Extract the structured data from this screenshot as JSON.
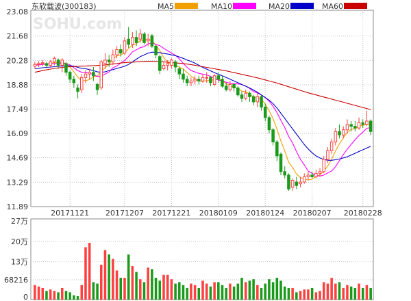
{
  "header": {
    "title": "东软载波(300183)",
    "watermark": "SOHU.com",
    "legend": [
      {
        "label": "MA5",
        "color": "#f0a000"
      },
      {
        "label": "MA10",
        "color": "#ff00ff"
      },
      {
        "label": "MA20",
        "color": "#0000c8"
      },
      {
        "label": "MA60",
        "color": "#c80000"
      }
    ]
  },
  "price_axis": {
    "ticks": [
      "23.08",
      "21.68",
      "20.28",
      "18.88",
      "17.49",
      "16.09",
      "14.69",
      "13.29",
      "11.89"
    ]
  },
  "date_axis": {
    "labels": [
      "20171121",
      "20171207",
      "20171221",
      "20180109",
      "20180124",
      "20180207",
      "20180228"
    ]
  },
  "volume_axis": {
    "ticks": [
      "27万",
      "20万",
      "13万",
      "68216",
      "0"
    ]
  },
  "colors": {
    "up": "#ff4040",
    "down": "#1a9a1a",
    "grid": "#c0c0c0",
    "border": "#888888",
    "wick": "#000000"
  },
  "chart_data": {
    "type": "candlestick",
    "title": "东软载波(300183)",
    "ylim": [
      11.89,
      23.08
    ],
    "volume_ylim": [
      0,
      270000
    ],
    "date_labels": [
      "20171121",
      "20171207",
      "20171221",
      "20180109",
      "20180124",
      "20180207",
      "20180228"
    ],
    "candles": [
      [
        19.95,
        20.05,
        20.2,
        19.8
      ],
      [
        20.05,
        20.1,
        20.25,
        19.9
      ],
      [
        20.1,
        20.15,
        20.3,
        19.95
      ],
      [
        20.1,
        20.0,
        20.2,
        19.85
      ],
      [
        20.0,
        20.2,
        20.3,
        19.9
      ],
      [
        20.2,
        20.4,
        20.5,
        20.0
      ],
      [
        20.3,
        20.0,
        20.4,
        19.8
      ],
      [
        20.0,
        20.3,
        20.4,
        19.6
      ],
      [
        20.1,
        19.6,
        20.2,
        19.4
      ],
      [
        19.6,
        19.2,
        19.7,
        19.0
      ],
      [
        19.2,
        19.0,
        19.4,
        18.7
      ],
      [
        18.7,
        18.5,
        18.9,
        18.1
      ],
      [
        18.6,
        19.3,
        19.5,
        18.4
      ],
      [
        19.3,
        19.5,
        19.7,
        19.0
      ],
      [
        19.5,
        19.6,
        19.8,
        19.2
      ],
      [
        19.6,
        19.4,
        19.9,
        19.1
      ],
      [
        18.9,
        18.6,
        19.0,
        18.3
      ],
      [
        18.7,
        20.2,
        20.3,
        18.6
      ],
      [
        20.1,
        20.3,
        20.7,
        19.8
      ],
      [
        20.3,
        20.2,
        20.6,
        19.9
      ],
      [
        20.2,
        20.6,
        20.9,
        20.0
      ],
      [
        20.6,
        20.9,
        21.1,
        20.4
      ],
      [
        20.9,
        20.7,
        21.2,
        20.5
      ],
      [
        20.7,
        21.4,
        21.6,
        20.6
      ],
      [
        21.5,
        21.2,
        22.2,
        21.0
      ],
      [
        21.2,
        21.6,
        21.9,
        21.0
      ],
      [
        21.6,
        21.3,
        22.0,
        21.1
      ],
      [
        21.5,
        21.8,
        22.1,
        21.3
      ],
      [
        21.8,
        21.3,
        21.9,
        21.2
      ],
      [
        21.4,
        21.5,
        21.8,
        21.1
      ],
      [
        21.7,
        21.1,
        21.8,
        21.0
      ],
      [
        21.1,
        20.6,
        21.2,
        20.4
      ],
      [
        20.5,
        19.7,
        20.6,
        19.5
      ],
      [
        19.8,
        20.0,
        20.2,
        19.7
      ],
      [
        20.0,
        20.1,
        20.3,
        19.7
      ],
      [
        20.0,
        20.3,
        20.4,
        19.8
      ],
      [
        20.2,
        19.9,
        20.3,
        19.6
      ],
      [
        19.8,
        19.5,
        19.9,
        19.2
      ],
      [
        19.5,
        19.2,
        19.8,
        19.0
      ],
      [
        19.2,
        19.0,
        19.4,
        18.8
      ],
      [
        19.0,
        19.1,
        19.3,
        18.8
      ],
      [
        19.1,
        19.2,
        19.4,
        18.9
      ],
      [
        19.2,
        19.1,
        19.4,
        18.9
      ],
      [
        19.1,
        19.3,
        19.5,
        19.0
      ],
      [
        19.3,
        19.3,
        19.6,
        19.0
      ],
      [
        19.3,
        19.0,
        19.4,
        18.8
      ],
      [
        18.9,
        19.4,
        19.5,
        18.8
      ],
      [
        19.4,
        19.2,
        19.6,
        19.0
      ],
      [
        19.2,
        18.8,
        19.4,
        18.7
      ],
      [
        18.8,
        18.6,
        19.0,
        18.5
      ],
      [
        18.6,
        18.9,
        19.1,
        18.5
      ],
      [
        18.9,
        18.7,
        19.0,
        18.5
      ],
      [
        18.7,
        18.3,
        18.8,
        18.2
      ],
      [
        18.3,
        18.1,
        18.5,
        17.9
      ],
      [
        18.1,
        18.4,
        18.6,
        18.0
      ],
      [
        18.4,
        18.2,
        18.5,
        17.9
      ],
      [
        18.2,
        17.9,
        18.3,
        17.7
      ],
      [
        17.9,
        18.2,
        18.4,
        17.6
      ],
      [
        18.2,
        17.6,
        18.3,
        17.4
      ],
      [
        17.6,
        17.0,
        17.8,
        16.8
      ],
      [
        17.0,
        16.3,
        17.1,
        16.1
      ],
      [
        16.3,
        15.6,
        16.4,
        15.4
      ],
      [
        15.6,
        14.8,
        15.7,
        14.5
      ],
      [
        14.9,
        13.9,
        15.0,
        13.7
      ],
      [
        13.9,
        13.7,
        14.2,
        13.5
      ],
      [
        13.7,
        12.9,
        13.8,
        12.8
      ],
      [
        13.0,
        13.4,
        13.5,
        12.8
      ],
      [
        13.3,
        13.1,
        13.6,
        12.9
      ],
      [
        13.2,
        13.3,
        13.6,
        13.0
      ],
      [
        13.3,
        13.6,
        13.8,
        13.2
      ],
      [
        13.6,
        13.7,
        13.9,
        13.4
      ],
      [
        13.7,
        13.6,
        13.9,
        13.5
      ],
      [
        13.6,
        13.8,
        14.0,
        13.5
      ],
      [
        13.8,
        13.9,
        14.1,
        13.6
      ],
      [
        13.9,
        14.6,
        14.8,
        13.8
      ],
      [
        14.6,
        15.1,
        15.3,
        14.4
      ],
      [
        15.1,
        15.6,
        15.8,
        14.9
      ],
      [
        15.6,
        16.2,
        16.4,
        15.4
      ],
      [
        16.2,
        16.0,
        16.6,
        15.8
      ],
      [
        16.0,
        16.3,
        16.5,
        15.8
      ],
      [
        16.3,
        16.6,
        16.9,
        16.1
      ],
      [
        16.6,
        16.5,
        16.8,
        16.2
      ],
      [
        16.5,
        16.4,
        16.8,
        16.2
      ],
      [
        16.4,
        16.7,
        17.0,
        16.3
      ],
      [
        16.7,
        16.6,
        16.9,
        16.4
      ],
      [
        16.6,
        16.8,
        17.4,
        16.5
      ],
      [
        16.8,
        16.2,
        16.9,
        16.0
      ]
    ],
    "volume": [
      50000,
      45000,
      40000,
      30000,
      35000,
      30000,
      25000,
      40000,
      30000,
      25000,
      15000,
      12000,
      50000,
      180000,
      195000,
      60000,
      55000,
      120000,
      170000,
      155000,
      140000,
      100000,
      75000,
      75000,
      155000,
      115000,
      95000,
      70000,
      60000,
      110000,
      105000,
      75000,
      65000,
      85000,
      85000,
      70000,
      55000,
      60000,
      50000,
      40000,
      55000,
      50000,
      40000,
      65000,
      55000,
      45000,
      60000,
      60000,
      50000,
      40000,
      55000,
      45000,
      55000,
      75000,
      60000,
      65000,
      70000,
      50000,
      40000,
      55000,
      70000,
      60000,
      75000,
      65000,
      45000,
      40000,
      40000,
      25000,
      30000,
      35000,
      35000,
      40000,
      25000,
      30000,
      60000,
      55000,
      75000,
      55000,
      60000,
      40000,
      50000,
      45000,
      40000,
      55000,
      40000,
      50000,
      40000
    ],
    "ma": [
      {
        "name": "MA5",
        "color": "#f0a000",
        "values": [
          20.05,
          20.06,
          20.08,
          20.08,
          20.1,
          20.17,
          20.15,
          20.18,
          20.1,
          19.9,
          19.62,
          19.32,
          19.12,
          19.12,
          19.18,
          19.34,
          19.38,
          19.66,
          19.86,
          20.06,
          20.38,
          20.54,
          20.6,
          20.7,
          20.96,
          21.16,
          21.24,
          21.42,
          21.44,
          21.5,
          21.4,
          21.16,
          20.84,
          20.44,
          20.18,
          20.02,
          19.98,
          19.9,
          19.78,
          19.58,
          19.38,
          19.22,
          19.1,
          19.08,
          19.12,
          19.14,
          19.16,
          19.2,
          19.12,
          18.94,
          18.8,
          18.76,
          18.66,
          18.52,
          18.48,
          18.34,
          18.18,
          18.16,
          18.06,
          17.78,
          17.4,
          16.94,
          16.34,
          15.66,
          15.08,
          14.44,
          14.14,
          13.76,
          13.56,
          13.48,
          13.42,
          13.46,
          13.6,
          13.72,
          13.92,
          14.22,
          14.6,
          15.08,
          15.5,
          15.84,
          16.14,
          16.32,
          16.36,
          16.5,
          16.56,
          16.6,
          16.54
        ]
      },
      {
        "name": "MA10",
        "color": "#ff00ff",
        "values": [
          20.0,
          20.02,
          20.05,
          20.07,
          20.08,
          20.1,
          20.11,
          20.13,
          20.09,
          20.03,
          19.86,
          19.69,
          19.6,
          19.6,
          19.54,
          19.48,
          19.35,
          19.39,
          19.49,
          19.62,
          19.86,
          19.96,
          20.13,
          20.28,
          20.51,
          20.77,
          20.89,
          21.01,
          21.07,
          21.23,
          21.28,
          21.2,
          21.13,
          20.97,
          20.84,
          20.71,
          20.57,
          20.37,
          20.11,
          19.88,
          19.7,
          19.62,
          19.54,
          19.49,
          19.45,
          19.36,
          19.27,
          19.15,
          19.1,
          19.03,
          18.97,
          18.95,
          18.93,
          18.9,
          18.81,
          18.67,
          18.49,
          18.41,
          18.29,
          18.15,
          17.94,
          17.65,
          17.29,
          16.84,
          16.43,
          15.92,
          15.54,
          15.05,
          14.61,
          14.28,
          13.93,
          13.8,
          13.68,
          13.64,
          13.7,
          13.82,
          13.93,
          14.18,
          14.53,
          14.88,
          15.18,
          15.46,
          15.72,
          15.97,
          16.16,
          16.38,
          16.43
        ]
      },
      {
        "name": "MA20",
        "color": "#0000c8",
        "values": [
          19.8,
          19.83,
          19.86,
          19.88,
          19.9,
          19.92,
          19.94,
          19.96,
          19.97,
          19.98,
          19.95,
          19.88,
          19.82,
          19.8,
          19.75,
          19.7,
          19.62,
          19.6,
          19.62,
          19.7,
          19.75,
          19.82,
          19.88,
          19.95,
          20.05,
          20.2,
          20.35,
          20.5,
          20.6,
          20.7,
          20.75,
          20.75,
          20.72,
          20.68,
          20.65,
          20.6,
          20.55,
          20.48,
          20.4,
          20.3,
          20.22,
          20.12,
          20.0,
          19.88,
          19.78,
          19.68,
          19.58,
          19.48,
          19.4,
          19.3,
          19.2,
          19.1,
          19.0,
          18.9,
          18.8,
          18.7,
          18.58,
          18.45,
          18.3,
          18.15,
          18.0,
          17.8,
          17.55,
          17.25,
          16.95,
          16.65,
          16.35,
          16.05,
          15.75,
          15.45,
          15.2,
          14.98,
          14.8,
          14.68,
          14.6,
          14.55,
          14.55,
          14.58,
          14.62,
          14.68,
          14.75,
          14.85,
          14.95,
          15.05,
          15.15,
          15.25,
          15.35
        ]
      },
      {
        "name": "MA60",
        "color": "#c80000",
        "values": [
          19.6,
          19.65,
          19.7,
          19.74,
          19.78,
          19.82,
          19.85,
          19.88,
          19.9,
          19.92,
          19.93,
          19.94,
          19.95,
          19.96,
          19.97,
          19.98,
          19.99,
          20.0,
          20.02,
          20.05,
          20.08,
          20.1,
          20.13,
          20.15,
          20.17,
          20.18,
          20.2,
          20.21,
          20.22,
          20.23,
          20.23,
          20.22,
          20.21,
          20.2,
          20.18,
          20.16,
          20.14,
          20.12,
          20.1,
          20.07,
          20.04,
          20.0,
          19.96,
          19.92,
          19.88,
          19.84,
          19.8,
          19.76,
          19.72,
          19.68,
          19.63,
          19.58,
          19.53,
          19.48,
          19.43,
          19.38,
          19.33,
          19.28,
          19.22,
          19.16,
          19.1,
          19.04,
          18.98,
          18.91,
          18.84,
          18.77,
          18.7,
          18.63,
          18.56,
          18.49,
          18.42,
          18.36,
          18.3,
          18.24,
          18.18,
          18.12,
          18.06,
          18.0,
          17.94,
          17.88,
          17.82,
          17.76,
          17.7,
          17.64,
          17.58,
          17.52,
          17.45
        ]
      }
    ]
  }
}
